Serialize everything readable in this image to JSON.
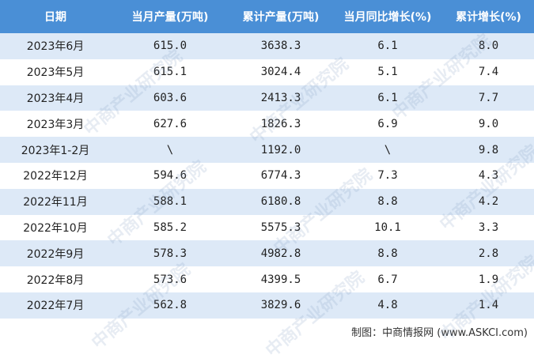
{
  "table": {
    "header": [
      "日期",
      "当月产量(万吨)",
      "累计产量(万吨)",
      "当月同比增长(%)",
      "累计增长(%)"
    ],
    "rows": [
      [
        "2023年6月",
        "615.0",
        "3638.3",
        "6.1",
        "8.0"
      ],
      [
        "2023年5月",
        "615.1",
        "3024.4",
        "5.1",
        "7.4"
      ],
      [
        "2023年4月",
        "603.6",
        "2413.3",
        "6.1",
        "7.7"
      ],
      [
        "2023年3月",
        "627.6",
        "1826.3",
        "6.9",
        "9.0"
      ],
      [
        "2023年1-2月",
        "\\",
        "1192.0",
        "\\",
        "9.8"
      ],
      [
        "2022年12月",
        "594.6",
        "6774.3",
        "7.3",
        "4.3"
      ],
      [
        "2022年11月",
        "588.1",
        "6180.8",
        "8.8",
        "4.2"
      ],
      [
        "2022年10月",
        "585.2",
        "5575.3",
        "10.1",
        "3.3"
      ],
      [
        "2022年9月",
        "578.3",
        "4982.8",
        "8.8",
        "2.8"
      ],
      [
        "2022年8月",
        "573.6",
        "4399.5",
        "6.7",
        "1.9"
      ],
      [
        "2022年7月",
        "562.8",
        "3829.6",
        "4.8",
        "1.4"
      ]
    ]
  },
  "source": "制图：中商情报网 (www.ASKCI.com)",
  "watermark": "中商产业研究院"
}
